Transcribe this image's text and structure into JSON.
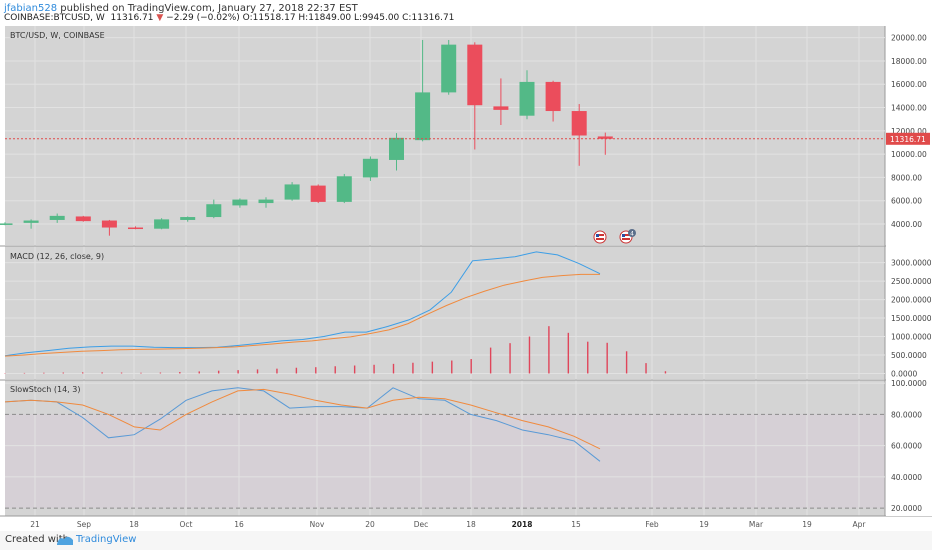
{
  "header": {
    "username": "jfabian528",
    "published_text": "published on TradingView.com, January 27, 2018 22:37 EST",
    "symbol": "COINBASE:BTCUSD, W",
    "price": "11316.71",
    "change_arrow": "▼",
    "change": "−2.29 (−0.02%)",
    "ohlc": "O:11518.17 H:11849.00 L:9945.00 C:11316.71"
  },
  "footer": {
    "created_with": "Created with",
    "brand": "TradingView"
  },
  "colors": {
    "up": "#53b987",
    "down": "#eb4d5c",
    "panel_bg": "#d4d4d4",
    "stoch_bg": "#d6d0d6",
    "grid": "#e2e2e2",
    "macd_line": "#3d9ee6",
    "signal_line": "#f08a3e",
    "histogram": "#e0455a",
    "stoch_k": "#5a9ad6",
    "stoch_d": "#f08a3e",
    "price_line": "#e04a4a"
  },
  "chart_data": [
    {
      "type": "candlestick",
      "title": "BTC/USD, W, COINBASE",
      "current_price_label": "11316.71",
      "y_ticks": [
        "4000.00",
        "6000.00",
        "8000.00",
        "10000.00",
        "12000.00",
        "14000.00",
        "16000.00",
        "18000.00",
        "20000.00"
      ],
      "ylim": [
        2200,
        21000
      ],
      "x_ticks": [
        "21",
        "Sep",
        "18",
        "Oct",
        "16",
        "Nov",
        "20",
        "Dec",
        "18",
        "2018",
        "15",
        "Feb",
        "19",
        "Mar",
        "19",
        "Apr"
      ],
      "candles": [
        {
          "o": 4050,
          "h": 4150,
          "l": 3900,
          "c": 4050
        },
        {
          "o": 4100,
          "h": 4400,
          "l": 3600,
          "c": 4300
        },
        {
          "o": 4350,
          "h": 4900,
          "l": 4100,
          "c": 4700
        },
        {
          "o": 4650,
          "h": 4700,
          "l": 4200,
          "c": 4250
        },
        {
          "o": 4300,
          "h": 4350,
          "l": 3000,
          "c": 3700
        },
        {
          "o": 3700,
          "h": 3800,
          "l": 3550,
          "c": 3600
        },
        {
          "o": 3600,
          "h": 4500,
          "l": 3550,
          "c": 4400
        },
        {
          "o": 4350,
          "h": 4650,
          "l": 4200,
          "c": 4600
        },
        {
          "o": 4600,
          "h": 6100,
          "l": 4500,
          "c": 5700
        },
        {
          "o": 5600,
          "h": 6200,
          "l": 5400,
          "c": 6100
        },
        {
          "o": 5800,
          "h": 6300,
          "l": 5400,
          "c": 6100
        },
        {
          "o": 6100,
          "h": 7600,
          "l": 6000,
          "c": 7400
        },
        {
          "o": 7300,
          "h": 7400,
          "l": 5800,
          "c": 5900
        },
        {
          "o": 5900,
          "h": 8300,
          "l": 5800,
          "c": 8100
        },
        {
          "o": 8000,
          "h": 9800,
          "l": 7700,
          "c": 9600
        },
        {
          "o": 9500,
          "h": 11800,
          "l": 8600,
          "c": 11400
        },
        {
          "o": 11200,
          "h": 19800,
          "l": 11100,
          "c": 15300
        },
        {
          "o": 15300,
          "h": 19800,
          "l": 15100,
          "c": 19400
        },
        {
          "o": 19400,
          "h": 19600,
          "l": 10400,
          "c": 14200
        },
        {
          "o": 14100,
          "h": 16500,
          "l": 12500,
          "c": 13800
        },
        {
          "o": 13300,
          "h": 17200,
          "l": 13000,
          "c": 16200
        },
        {
          "o": 16200,
          "h": 16300,
          "l": 12800,
          "c": 13700
        },
        {
          "o": 13700,
          "h": 14300,
          "l": 9000,
          "c": 11600
        },
        {
          "o": 11518.17,
          "h": 11849,
          "l": 9945,
          "c": 11316.71
        }
      ]
    },
    {
      "type": "line",
      "title": "MACD (12, 26, close, 9)",
      "y_ticks": [
        "0.0000",
        "500.0000",
        "1000.0000",
        "1500.0000",
        "2000.0000",
        "2500.0000",
        "3000.0000"
      ],
      "ylim": [
        -150,
        3450
      ],
      "series": [
        {
          "values": [
            480,
            560,
            620,
            680,
            720,
            740,
            740,
            710,
            700,
            700,
            710,
            760,
            820,
            880,
            920,
            1000,
            1120,
            1120,
            1270,
            1450,
            1720,
            2200,
            3050,
            3100,
            3160,
            3290,
            3210,
            2980,
            2700
          ]
        },
        {
          "values": [
            470,
            500,
            540,
            570,
            600,
            620,
            640,
            650,
            660,
            670,
            680,
            700,
            720,
            760,
            800,
            850,
            880,
            940,
            990,
            1080,
            1180,
            1350,
            1600,
            1840,
            2050,
            2230,
            2390,
            2500,
            2600,
            2650,
            2680,
            2680
          ]
        }
      ],
      "histogram": [
        10,
        15,
        20,
        25,
        30,
        30,
        25,
        20,
        25,
        40,
        55,
        75,
        90,
        110,
        130,
        155,
        170,
        195,
        215,
        235,
        260,
        290,
        320,
        350,
        390,
        700,
        820,
        1000,
        1280,
        1100,
        860,
        830,
        600,
        280,
        60
      ]
    },
    {
      "type": "line",
      "title": "SlowStoch (14, 3)",
      "y_ticks": [
        "20.0000",
        "40.0000",
        "60.0000",
        "80.0000",
        "100.0000"
      ],
      "ylim": [
        15,
        102
      ],
      "series": [
        {
          "values": [
            88,
            89,
            88,
            78,
            65,
            67,
            77,
            89,
            95,
            97,
            95,
            84,
            85,
            85,
            84,
            97,
            90,
            89,
            80,
            76,
            70,
            67,
            63,
            50
          ]
        },
        {
          "values": [
            88,
            89,
            88,
            86,
            80,
            72,
            70,
            80,
            88,
            95,
            96,
            93,
            89,
            86,
            84,
            89,
            91,
            90,
            86,
            81,
            76,
            72,
            66,
            58
          ]
        }
      ]
    }
  ]
}
